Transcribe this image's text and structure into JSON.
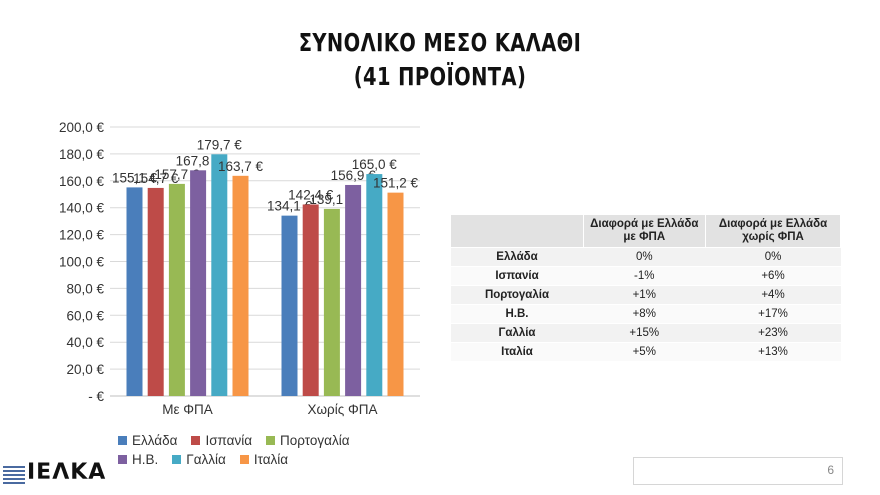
{
  "slide": {
    "title_line1": "ΣΥΝΟΛΙΚΟ ΜΕΣΟ ΚΑΛΑΘΙ",
    "title_line2": "(41 ΠΡΟΪΟΝΤΑ)",
    "page_number": "6",
    "logo_text": "ΙΕΛΚΑ"
  },
  "chart_data": {
    "type": "bar",
    "categories": [
      "Με ΦΠΑ",
      "Χωρίς ΦΠΑ"
    ],
    "ylim": [
      0,
      200
    ],
    "yticks": [
      0,
      20,
      40,
      60,
      80,
      100,
      120,
      140,
      160,
      180,
      200
    ],
    "ytick_labels": [
      "-  €",
      "20,0 €",
      "40,0 €",
      "60,0 €",
      "80,0 €",
      "100,0 €",
      "120,0 €",
      "140,0 €",
      "160,0 €",
      "180,0 €",
      "200,0 €"
    ],
    "grid": true,
    "legend_position": "bottom",
    "series": [
      {
        "name": "Ελλάδα",
        "color": "#4a7ebb",
        "values": [
          155.1,
          134.1
        ],
        "labels": [
          "155,1 €",
          "134,1 €"
        ]
      },
      {
        "name": "Ισπανία",
        "color": "#be4b48",
        "values": [
          154.7,
          142.4
        ],
        "labels": [
          "154,7 €",
          "142,4 €"
        ]
      },
      {
        "name": "Πορτογαλία",
        "color": "#98b954",
        "values": [
          157.7,
          139.1
        ],
        "labels": [
          "157,7 €",
          "139,1 €"
        ]
      },
      {
        "name": "Η.Β.",
        "color": "#7d60a0",
        "values": [
          167.8,
          156.9
        ],
        "labels": [
          "167,8 €",
          "156,9 €"
        ]
      },
      {
        "name": "Γαλλία",
        "color": "#46aac5",
        "values": [
          179.7,
          165.0
        ],
        "labels": [
          "179,7 €",
          "165,0 €"
        ]
      },
      {
        "name": "Ιταλία",
        "color": "#f79646",
        "values": [
          163.7,
          151.2
        ],
        "labels": [
          "163,7 €",
          "151,2 €"
        ]
      }
    ]
  },
  "table": {
    "headers": [
      "",
      "Διαφορά με Ελλάδα με ΦΠΑ",
      "Διαφορά με Ελλάδα χωρίς ΦΠΑ"
    ],
    "rows": [
      {
        "country": "Ελλάδα",
        "with_vat": "0%",
        "without_vat": "0%"
      },
      {
        "country": "Ισπανία",
        "with_vat": "-1%",
        "without_vat": "+6%"
      },
      {
        "country": "Πορτογαλία",
        "with_vat": "+1%",
        "without_vat": "+4%"
      },
      {
        "country": "Η.Β.",
        "with_vat": "+8%",
        "without_vat": "+17%"
      },
      {
        "country": "Γαλλία",
        "with_vat": "+15%",
        "without_vat": "+23%"
      },
      {
        "country": "Ιταλία",
        "with_vat": "+5%",
        "without_vat": "+13%"
      }
    ]
  }
}
